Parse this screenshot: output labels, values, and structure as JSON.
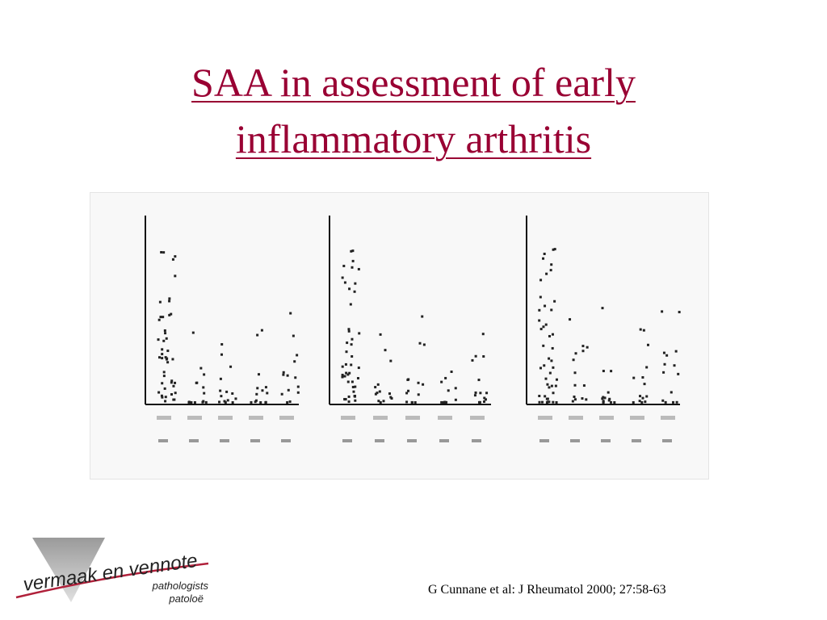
{
  "title": {
    "line1": "SAA in assessment of early",
    "line2": "inflammatory arthritis"
  },
  "citation": "G Cunnane et al: J Rheumatol 2000; 27:58-63",
  "logo": {
    "name": "vermaak en vennote",
    "line2": "pathologists",
    "line3": "patoloë"
  }
}
